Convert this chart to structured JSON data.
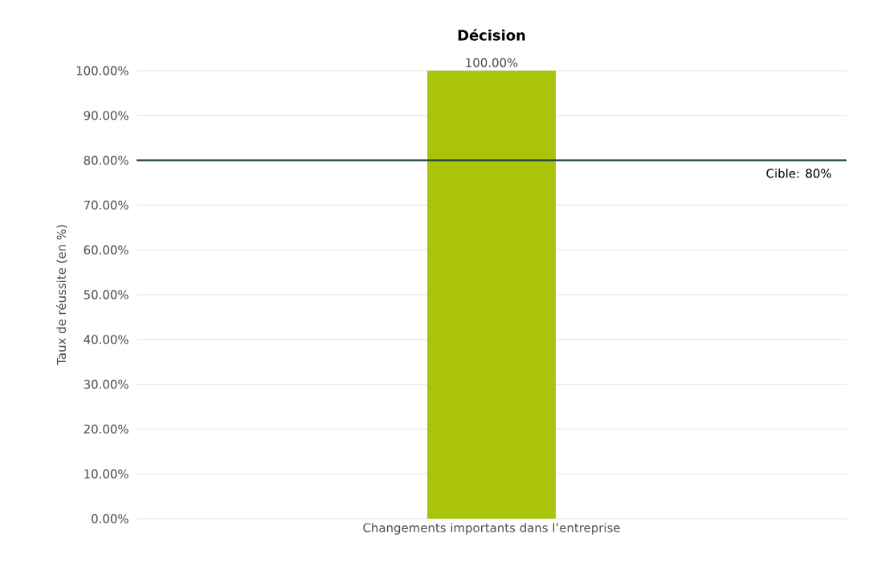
{
  "chart_data": {
    "type": "bar",
    "title": "**Décision**",
    "ylabel": "Taux de réussite (en %)",
    "categories": [
      "Changements importants dans l’entreprise"
    ],
    "values": [
      100
    ],
    "color": "#a9c40a",
    "value_labels": [
      "100.00%"
    ],
    "ylim": [
      0,
      100
    ],
    "yticks": [
      {
        "value": 0,
        "label": "0.00%"
      },
      {
        "value": 10,
        "label": "10.00%"
      },
      {
        "value": 20,
        "label": "20.00%"
      },
      {
        "value": 30,
        "label": "30.00%"
      },
      {
        "value": 40,
        "label": "40.00%"
      },
      {
        "value": 50,
        "label": "50.00%"
      },
      {
        "value": 60,
        "label": "60.00%"
      },
      {
        "value": 70,
        "label": "70.00%"
      },
      {
        "value": 80,
        "label": "80.00%"
      },
      {
        "value": 90,
        "label": "90.00%"
      },
      {
        "value": 100,
        "label": "100.00%"
      }
    ],
    "grid": "y",
    "ref_lines": [
      {
        "axis": "y",
        "value": 80,
        "label": "Cible: 80%",
        "color": "#1c3b36"
      }
    ]
  }
}
